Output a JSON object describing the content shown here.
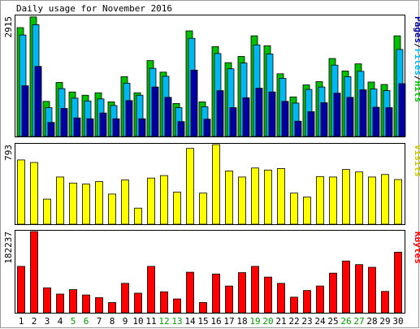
{
  "title": "Daily usage for November 2016",
  "chart_data": {
    "type": "bar",
    "title": "Daily usage for November 2016",
    "categories": [
      "1",
      "2",
      "3",
      "4",
      "5",
      "6",
      "7",
      "8",
      "9",
      "10",
      "11",
      "12",
      "13",
      "14",
      "15",
      "16",
      "17",
      "18",
      "19",
      "20",
      "21",
      "22",
      "23",
      "24",
      "25",
      "26",
      "27",
      "28",
      "29",
      "30"
    ],
    "weekend_days": [
      "5",
      "6",
      "12",
      "13",
      "19",
      "20",
      "26",
      "27"
    ],
    "panels": [
      {
        "id": "pages_files_hits",
        "ymax": 2915,
        "ymax_label": "2915",
        "right_label_parts": [
          "Pages",
          "/",
          "Files",
          "/",
          "Hits"
        ],
        "series": [
          {
            "name": "Hits",
            "color": "#00C000",
            "values": [
              2640,
              2900,
              850,
              1310,
              1080,
              1000,
              1060,
              840,
              1450,
              1060,
              1840,
              1560,
              800,
              2560,
              840,
              2180,
              1790,
              1940,
              2440,
              2200,
              1520,
              960,
              1250,
              1330,
              1890,
              1590,
              1760,
              1320,
              1260,
              2440
            ]
          },
          {
            "name": "Files",
            "color": "#00B8F0",
            "values": [
              2460,
              2710,
              700,
              1160,
              930,
              860,
              910,
              750,
              1290,
              1000,
              1650,
              1460,
              700,
              2380,
              720,
              2010,
              1640,
              1780,
              2220,
              2000,
              1410,
              810,
              1140,
              1200,
              1730,
              1450,
              1580,
              1150,
              1110,
              2110
            ]
          },
          {
            "name": "Pages",
            "color": "#0000A0",
            "values": [
              1230,
              1700,
              340,
              680,
              450,
              430,
              570,
              430,
              870,
              430,
              1200,
              950,
              360,
              1610,
              420,
              1110,
              700,
              940,
              1170,
              1080,
              850,
              370,
              600,
              820,
              1050,
              950,
              1130,
              710,
              700,
              1280
            ]
          }
        ]
      },
      {
        "id": "visits",
        "ymax": 793,
        "ymax_label": "793",
        "right_label_parts": [
          "Visits"
        ],
        "series": [
          {
            "name": "Visits",
            "color": "#FFFF00",
            "values": [
              640,
              615,
              250,
              470,
              410,
              400,
              425,
              300,
              440,
              160,
              460,
              485,
              320,
              755,
              310,
              793,
              530,
              470,
              560,
              540,
              555,
              310,
              270,
              475,
              470,
              545,
              520,
              470,
              495,
              445
            ]
          }
        ]
      },
      {
        "id": "kbytes",
        "ymax": 182237,
        "ymax_label": "182237",
        "right_label_parts": [
          "KBytes"
        ],
        "series": [
          {
            "name": "KBytes",
            "color": "#FF0000",
            "values": [
              104000,
              182237,
              56000,
              42000,
              52000,
              40000,
              34000,
              23000,
              66000,
              44000,
              104000,
              47000,
              31000,
              91000,
              23000,
              87000,
              60000,
              90000,
              104000,
              80000,
              66000,
              35000,
              50000,
              60000,
              89000,
              116000,
              108000,
              102000,
              48000,
              136000
            ]
          }
        ]
      }
    ],
    "colors": {
      "background": "#FFFFFF",
      "border": "#000000",
      "hits": "#00C000",
      "files": "#00B8F0",
      "pages": "#0000A0",
      "visits": "#FFFF00",
      "kbytes": "#FF0000",
      "weekday_label": "#000000",
      "weekend_label": "#00A000"
    }
  }
}
